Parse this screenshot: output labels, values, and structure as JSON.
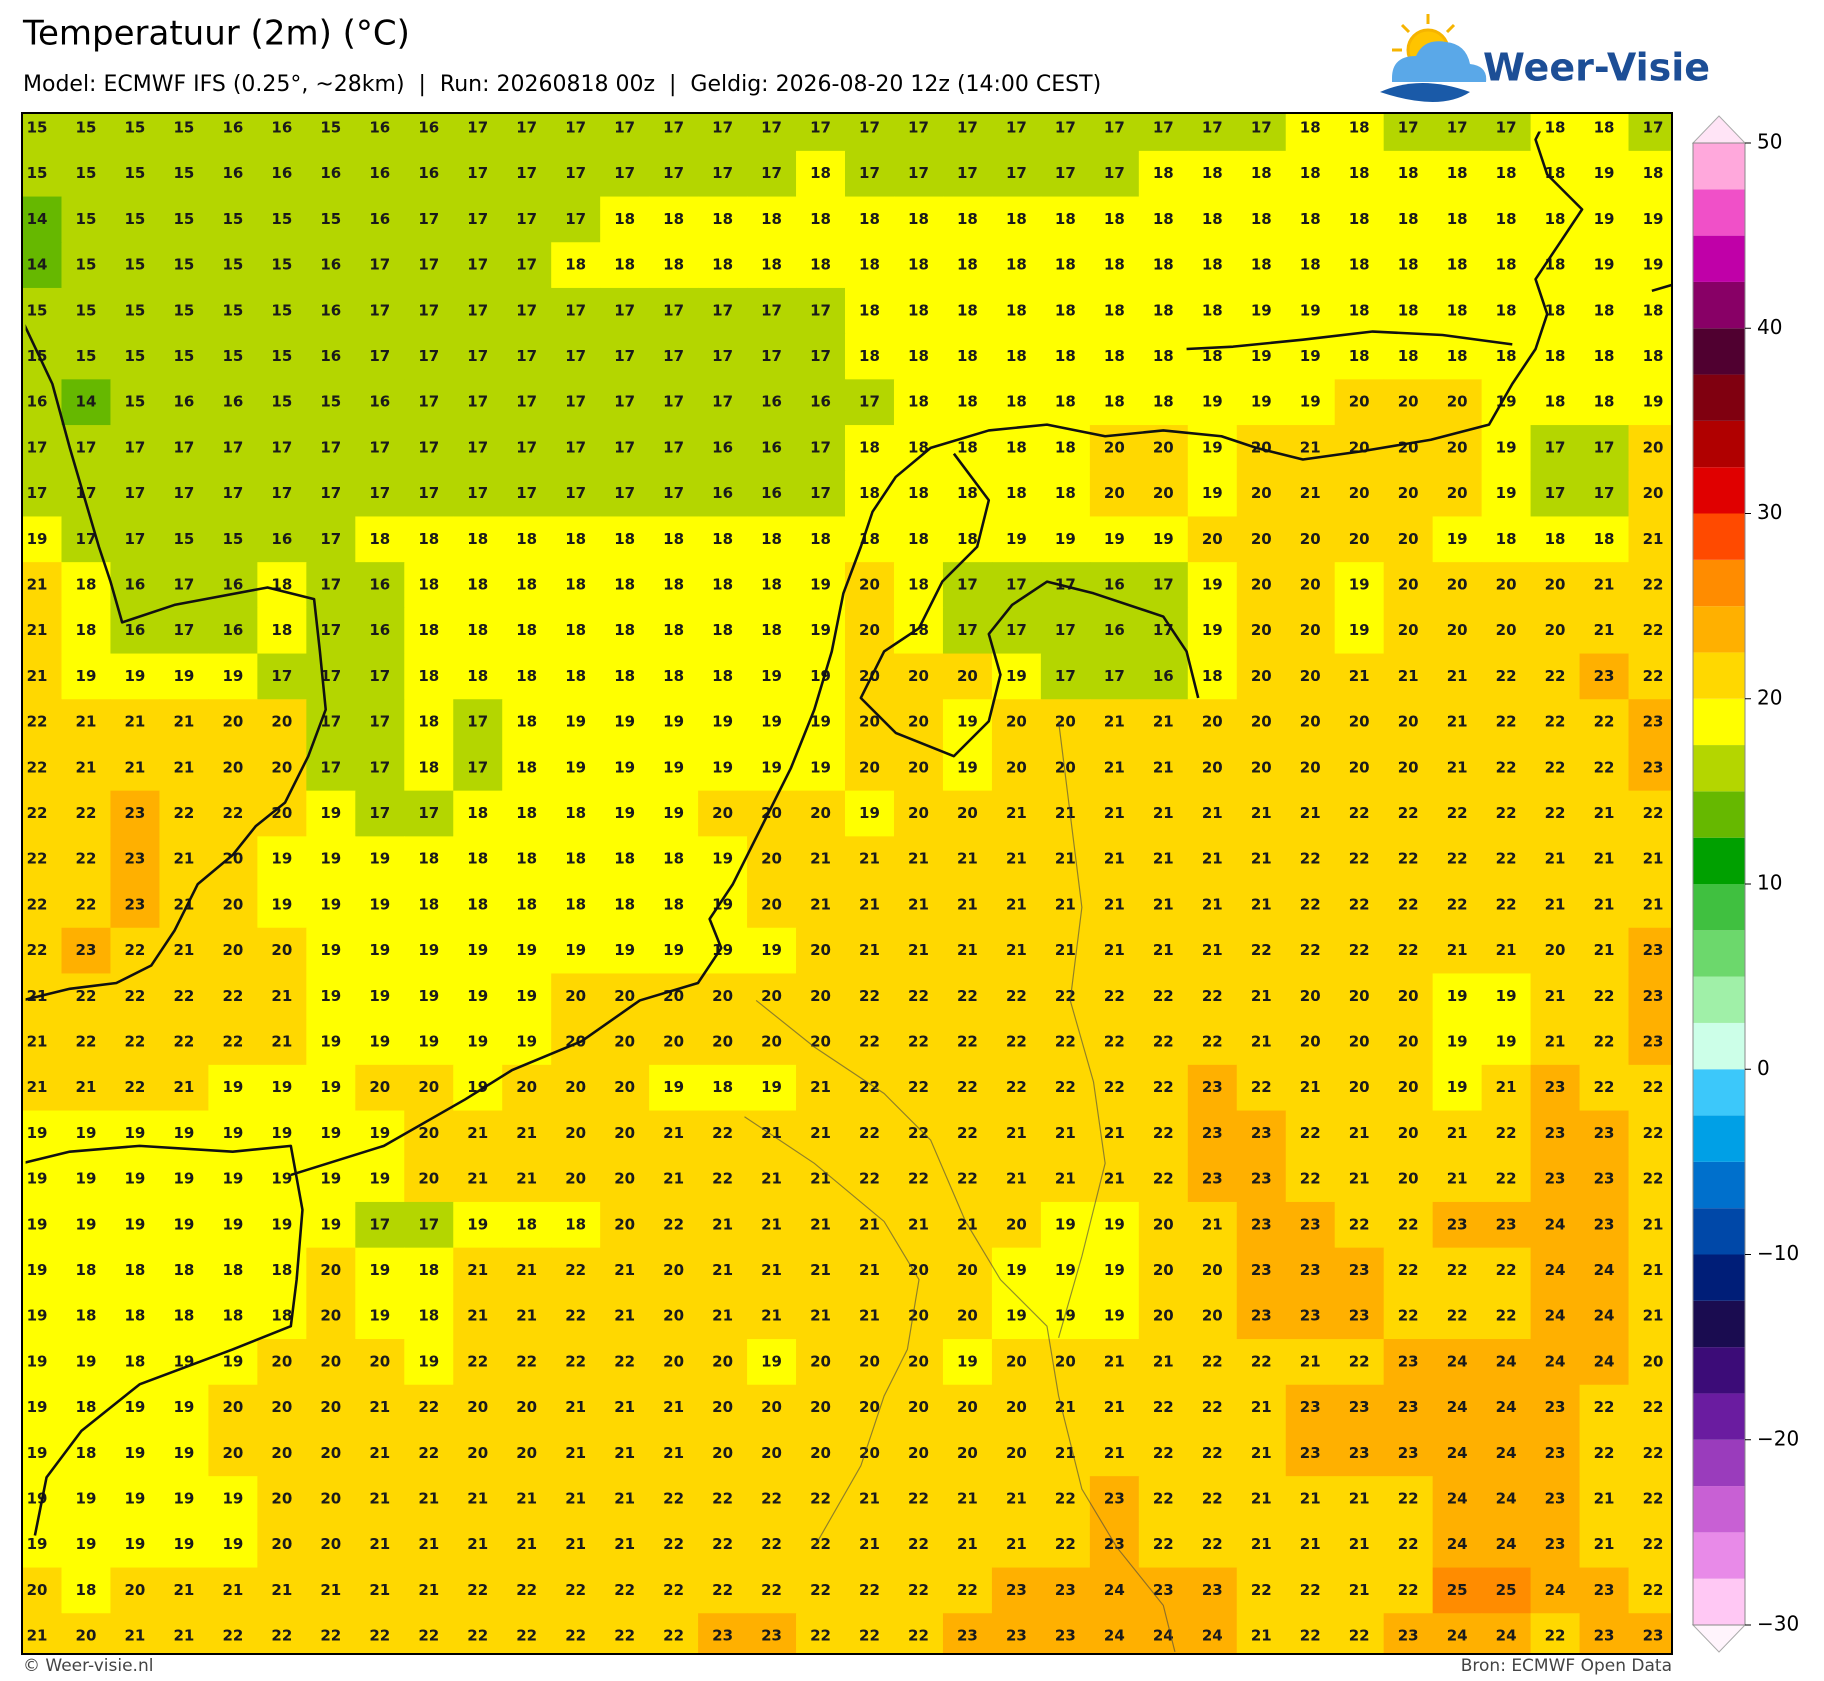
{
  "header": {
    "title": "Temperatuur (2m) (°C)",
    "subtitle": "Model: ECMWF IFS (0.25°, ~28km)  |  Run: 20260818 00z  |  Geldig: 2026-08-20 12z (14:00 CEST)",
    "logo": "Weer-Visie"
  },
  "footer": {
    "left": "© Weer-visie.nl",
    "right": "Bron: ECMWF Open Data"
  },
  "colorbar": {
    "lim": [
      -30,
      50
    ],
    "ticks": [
      50,
      40,
      30,
      20,
      10,
      0,
      {
        "value": -10,
        "label": "−10"
      },
      {
        "value": -20,
        "label": "−20"
      },
      {
        "value": -30,
        "label": "−30"
      }
    ],
    "levels": [
      -30,
      -27.5,
      -25,
      -22.5,
      -20,
      -17.5,
      -15,
      -12.5,
      -10,
      -7.5,
      -5,
      -2.5,
      0,
      2.5,
      5,
      7.5,
      10,
      12.5,
      15,
      17.5,
      20,
      22.5,
      25,
      27.5,
      30,
      32.5,
      35,
      37.5,
      40,
      42.5,
      45,
      47.5,
      50
    ],
    "colors": [
      "#ffc8f4",
      "#e88ae8",
      "#c860d4",
      "#9a3cbc",
      "#6a1ca0",
      "#3c0c78",
      "#1a0c50",
      "#001e78",
      "#0048a8",
      "#0070cc",
      "#00a0e6",
      "#3cc8fa",
      "#ccffe8",
      "#a0f0a8",
      "#6cd86c",
      "#40c040",
      "#00a000",
      "#66b800",
      "#b4d600",
      "#ffff00",
      "#ffd800",
      "#ffb000",
      "#ff8c00",
      "#ff4a00",
      "#e00000",
      "#b00000",
      "#800010",
      "#500030",
      "#880066",
      "#c000a8",
      "#f050c8",
      "#ffa8dc"
    ]
  },
  "grid": {
    "values": [
      [
        15,
        15,
        15,
        15,
        16,
        16,
        15,
        16,
        16,
        17,
        17,
        17,
        17,
        17,
        17,
        17,
        17,
        17,
        17,
        17,
        17,
        17,
        17,
        17,
        17,
        17,
        18,
        18,
        17,
        17,
        17,
        18,
        18,
        17
      ],
      [
        15,
        15,
        15,
        15,
        16,
        16,
        16,
        16,
        16,
        17,
        17,
        17,
        17,
        17,
        17,
        17,
        18,
        17,
        17,
        17,
        17,
        17,
        17,
        18,
        18,
        18,
        18,
        18,
        18,
        18,
        18,
        18,
        19,
        18
      ],
      [
        14,
        15,
        15,
        15,
        15,
        15,
        15,
        16,
        17,
        17,
        17,
        17,
        18,
        18,
        18,
        18,
        18,
        18,
        18,
        18,
        18,
        18,
        18,
        18,
        18,
        18,
        18,
        18,
        18,
        18,
        18,
        18,
        19,
        19
      ],
      [
        14,
        15,
        15,
        15,
        15,
        15,
        16,
        17,
        17,
        17,
        17,
        18,
        18,
        18,
        18,
        18,
        18,
        18,
        18,
        18,
        18,
        18,
        18,
        18,
        18,
        18,
        18,
        18,
        18,
        18,
        18,
        18,
        19,
        19
      ],
      [
        15,
        15,
        15,
        15,
        15,
        15,
        16,
        17,
        17,
        17,
        17,
        17,
        17,
        17,
        17,
        17,
        17,
        18,
        18,
        18,
        18,
        18,
        18,
        18,
        18,
        19,
        19,
        18,
        18,
        18,
        18,
        18,
        18,
        18
      ],
      [
        15,
        15,
        15,
        15,
        15,
        15,
        16,
        17,
        17,
        17,
        17,
        17,
        17,
        17,
        17,
        17,
        17,
        18,
        18,
        18,
        18,
        18,
        18,
        18,
        18,
        19,
        19,
        18,
        18,
        18,
        18,
        18,
        18,
        18
      ],
      [
        16,
        14,
        15,
        16,
        16,
        15,
        15,
        16,
        17,
        17,
        17,
        17,
        17,
        17,
        17,
        16,
        16,
        17,
        18,
        18,
        18,
        18,
        18,
        18,
        19,
        19,
        19,
        20,
        20,
        20,
        19,
        18,
        18,
        19
      ],
      [
        17,
        17,
        17,
        17,
        17,
        17,
        17,
        17,
        17,
        17,
        17,
        17,
        17,
        17,
        16,
        16,
        17,
        18,
        18,
        18,
        18,
        18,
        20,
        20,
        19,
        20,
        21,
        20,
        20,
        20,
        19,
        17,
        17,
        20
      ],
      [
        17,
        17,
        17,
        17,
        17,
        17,
        17,
        17,
        17,
        17,
        17,
        17,
        17,
        17,
        16,
        16,
        17,
        18,
        18,
        18,
        18,
        18,
        20,
        20,
        19,
        20,
        21,
        20,
        20,
        20,
        19,
        17,
        17,
        20
      ],
      [
        19,
        17,
        17,
        15,
        15,
        16,
        17,
        18,
        18,
        18,
        18,
        18,
        18,
        18,
        18,
        18,
        18,
        18,
        18,
        18,
        19,
        19,
        19,
        19,
        20,
        20,
        20,
        20,
        20,
        19,
        18,
        18,
        18,
        21
      ],
      [
        21,
        18,
        16,
        17,
        16,
        18,
        17,
        16,
        18,
        18,
        18,
        18,
        18,
        18,
        18,
        18,
        19,
        20,
        18,
        17,
        17,
        17,
        16,
        17,
        19,
        20,
        20,
        19,
        20,
        20,
        20,
        20,
        21,
        22
      ],
      [
        21,
        18,
        16,
        17,
        16,
        18,
        17,
        16,
        18,
        18,
        18,
        18,
        18,
        18,
        18,
        18,
        19,
        20,
        18,
        17,
        17,
        17,
        16,
        17,
        19,
        20,
        20,
        19,
        20,
        20,
        20,
        20,
        21,
        22
      ],
      [
        21,
        19,
        19,
        19,
        19,
        17,
        17,
        17,
        18,
        18,
        18,
        18,
        18,
        18,
        18,
        19,
        19,
        20,
        20,
        20,
        19,
        17,
        17,
        16,
        18,
        20,
        20,
        21,
        21,
        21,
        22,
        22,
        23,
        22
      ],
      [
        22,
        21,
        21,
        21,
        20,
        20,
        17,
        17,
        18,
        17,
        18,
        19,
        19,
        19,
        19,
        19,
        19,
        20,
        20,
        19,
        20,
        20,
        21,
        21,
        20,
        20,
        20,
        20,
        20,
        21,
        22,
        22,
        22,
        23
      ],
      [
        22,
        21,
        21,
        21,
        20,
        20,
        17,
        17,
        18,
        17,
        18,
        19,
        19,
        19,
        19,
        19,
        19,
        20,
        20,
        19,
        20,
        20,
        21,
        21,
        20,
        20,
        20,
        20,
        20,
        21,
        22,
        22,
        22,
        23
      ],
      [
        22,
        22,
        23,
        22,
        22,
        20,
        19,
        17,
        17,
        18,
        18,
        18,
        19,
        19,
        20,
        20,
        20,
        19,
        20,
        20,
        21,
        21,
        21,
        21,
        21,
        21,
        21,
        22,
        22,
        22,
        22,
        22,
        21,
        22
      ],
      [
        22,
        22,
        23,
        21,
        20,
        19,
        19,
        19,
        18,
        18,
        18,
        18,
        18,
        18,
        19,
        20,
        21,
        21,
        21,
        21,
        21,
        21,
        21,
        21,
        21,
        21,
        22,
        22,
        22,
        22,
        22,
        21,
        21,
        21
      ],
      [
        22,
        22,
        23,
        21,
        20,
        19,
        19,
        19,
        18,
        18,
        18,
        18,
        18,
        18,
        19,
        20,
        21,
        21,
        21,
        21,
        21,
        21,
        21,
        21,
        21,
        21,
        22,
        22,
        22,
        22,
        22,
        21,
        21,
        21
      ],
      [
        22,
        23,
        22,
        21,
        20,
        20,
        19,
        19,
        19,
        19,
        19,
        19,
        19,
        19,
        19,
        19,
        20,
        21,
        21,
        21,
        21,
        21,
        21,
        21,
        21,
        22,
        22,
        22,
        22,
        21,
        21,
        20,
        21,
        23
      ],
      [
        21,
        22,
        22,
        22,
        22,
        21,
        19,
        19,
        19,
        19,
        19,
        20,
        20,
        20,
        20,
        20,
        20,
        22,
        22,
        22,
        22,
        22,
        22,
        22,
        22,
        21,
        20,
        20,
        20,
        19,
        19,
        21,
        22,
        23
      ],
      [
        21,
        22,
        22,
        22,
        22,
        21,
        19,
        19,
        19,
        19,
        19,
        20,
        20,
        20,
        20,
        20,
        20,
        22,
        22,
        22,
        22,
        22,
        22,
        22,
        22,
        21,
        20,
        20,
        20,
        19,
        19,
        21,
        22,
        23
      ],
      [
        21,
        21,
        22,
        21,
        19,
        19,
        19,
        20,
        20,
        19,
        20,
        20,
        20,
        19,
        18,
        19,
        21,
        22,
        22,
        22,
        22,
        22,
        22,
        22,
        23,
        22,
        21,
        20,
        20,
        19,
        21,
        23,
        22,
        22
      ],
      [
        19,
        19,
        19,
        19,
        19,
        19,
        19,
        19,
        20,
        21,
        21,
        20,
        20,
        21,
        22,
        21,
        21,
        22,
        22,
        22,
        21,
        21,
        21,
        22,
        23,
        23,
        22,
        21,
        20,
        21,
        22,
        23,
        23,
        22
      ],
      [
        19,
        19,
        19,
        19,
        19,
        19,
        19,
        19,
        20,
        21,
        21,
        20,
        20,
        21,
        22,
        21,
        21,
        22,
        22,
        22,
        21,
        21,
        21,
        22,
        23,
        23,
        22,
        21,
        20,
        21,
        22,
        23,
        23,
        22
      ],
      [
        19,
        19,
        19,
        19,
        19,
        19,
        19,
        17,
        17,
        19,
        18,
        18,
        20,
        22,
        21,
        21,
        21,
        21,
        21,
        21,
        20,
        19,
        19,
        20,
        21,
        23,
        23,
        22,
        22,
        23,
        23,
        24,
        23,
        21
      ],
      [
        19,
        18,
        18,
        18,
        18,
        18,
        20,
        19,
        18,
        21,
        21,
        22,
        21,
        20,
        21,
        21,
        21,
        21,
        20,
        20,
        19,
        19,
        19,
        20,
        20,
        23,
        23,
        23,
        22,
        22,
        22,
        24,
        24,
        21
      ],
      [
        19,
        18,
        18,
        18,
        18,
        18,
        20,
        19,
        18,
        21,
        21,
        22,
        21,
        20,
        21,
        21,
        21,
        21,
        20,
        20,
        19,
        19,
        19,
        20,
        20,
        23,
        23,
        23,
        22,
        22,
        22,
        24,
        24,
        21
      ],
      [
        19,
        19,
        18,
        19,
        19,
        20,
        20,
        20,
        19,
        22,
        22,
        22,
        22,
        20,
        20,
        19,
        20,
        20,
        20,
        19,
        20,
        20,
        21,
        21,
        22,
        22,
        21,
        22,
        23,
        24,
        24,
        24,
        24,
        20
      ],
      [
        19,
        18,
        19,
        19,
        20,
        20,
        20,
        21,
        22,
        20,
        20,
        21,
        21,
        21,
        20,
        20,
        20,
        20,
        20,
        20,
        20,
        21,
        21,
        22,
        22,
        21,
        23,
        23,
        23,
        24,
        24,
        23,
        22,
        22
      ],
      [
        19,
        18,
        19,
        19,
        20,
        20,
        20,
        21,
        22,
        20,
        20,
        21,
        21,
        21,
        20,
        20,
        20,
        20,
        20,
        20,
        20,
        21,
        21,
        22,
        22,
        21,
        23,
        23,
        23,
        24,
        24,
        23,
        22,
        22
      ],
      [
        19,
        19,
        19,
        19,
        19,
        20,
        20,
        21,
        21,
        21,
        21,
        21,
        21,
        22,
        22,
        22,
        22,
        21,
        22,
        21,
        21,
        22,
        23,
        22,
        22,
        21,
        21,
        21,
        22,
        24,
        24,
        23,
        21,
        22
      ],
      [
        19,
        19,
        19,
        19,
        19,
        20,
        20,
        21,
        21,
        21,
        21,
        21,
        21,
        22,
        22,
        22,
        22,
        21,
        22,
        21,
        21,
        22,
        23,
        22,
        22,
        21,
        21,
        21,
        22,
        24,
        24,
        23,
        21,
        22
      ],
      [
        20,
        18,
        20,
        21,
        21,
        21,
        21,
        21,
        21,
        22,
        22,
        22,
        22,
        22,
        22,
        22,
        22,
        22,
        22,
        22,
        23,
        23,
        24,
        23,
        23,
        22,
        22,
        21,
        22,
        25,
        25,
        24,
        23,
        22
      ],
      [
        21,
        20,
        21,
        21,
        22,
        22,
        22,
        22,
        22,
        22,
        22,
        22,
        22,
        22,
        23,
        23,
        22,
        22,
        22,
        23,
        23,
        23,
        24,
        24,
        24,
        21,
        22,
        22,
        23,
        24,
        24,
        22,
        23,
        23
      ]
    ]
  }
}
